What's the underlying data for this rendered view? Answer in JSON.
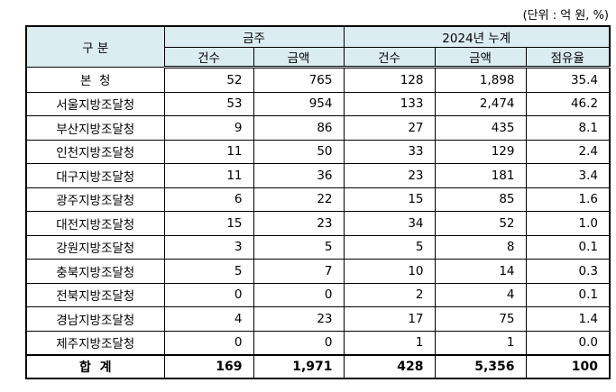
{
  "unit_note": "(단위 : 억 원, %)",
  "header": {
    "category": "구 분",
    "group_week": "금주",
    "group_cumulative": "2024년 누계",
    "sub": [
      "건수",
      "금액",
      "건수",
      "금액",
      "점유율"
    ]
  },
  "rows": [
    {
      "name": "본  청",
      "values": [
        "52",
        "765",
        "128",
        "1,898",
        "35.4"
      ]
    },
    {
      "name": "서울지방조달청",
      "values": [
        "53",
        "954",
        "133",
        "2,474",
        "46.2"
      ]
    },
    {
      "name": "부산지방조달청",
      "values": [
        "9",
        "86",
        "27",
        "435",
        "8.1"
      ]
    },
    {
      "name": "인천지방조달청",
      "values": [
        "11",
        "50",
        "33",
        "129",
        "2.4"
      ]
    },
    {
      "name": "대구지방조달청",
      "values": [
        "11",
        "36",
        "23",
        "181",
        "3.4"
      ]
    },
    {
      "name": "광주지방조달청",
      "values": [
        "6",
        "22",
        "15",
        "85",
        "1.6"
      ]
    },
    {
      "name": "대전지방조달청",
      "values": [
        "15",
        "23",
        "34",
        "52",
        "1.0"
      ]
    },
    {
      "name": "강원지방조달청",
      "values": [
        "3",
        "5",
        "5",
        "8",
        "0.1"
      ]
    },
    {
      "name": "충북지방조달청",
      "values": [
        "5",
        "7",
        "10",
        "14",
        "0.3"
      ]
    },
    {
      "name": "전북지방조달청",
      "values": [
        "0",
        "0",
        "2",
        "4",
        "0.1"
      ]
    },
    {
      "name": "경남지방조달청",
      "values": [
        "4",
        "23",
        "17",
        "75",
        "1.4"
      ]
    },
    {
      "name": "제주지방조달청",
      "values": [
        "0",
        "0",
        "1",
        "1",
        "0.0"
      ]
    }
  ],
  "total": {
    "name": "합  계",
    "values": [
      "169",
      "1,971",
      "428",
      "5,356",
      "100"
    ]
  },
  "colors": {
    "header_bg": "#dcedf2"
  }
}
